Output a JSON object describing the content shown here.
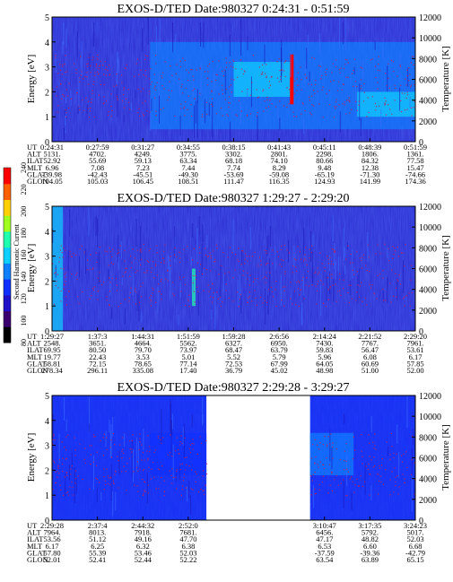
{
  "colorbar": {
    "label": "Second Harmonic Current",
    "ticks": [
      "80",
      "100",
      "120",
      "140",
      "160",
      "180",
      "200",
      "220",
      "240"
    ],
    "colors": [
      "#000000",
      "#3a0070",
      "#2010c8",
      "#1030ff",
      "#1080ff",
      "#10d0ff",
      "#20ffb0",
      "#a0ff20",
      "#ffd000",
      "#ff6000",
      "#ff0000"
    ]
  },
  "panels": [
    {
      "title": "EXOS-D/TED   Date:980327  0:24:31 - 0:51:59",
      "ylabel": "Energy [eV]",
      "y2label": "Temperature [K]",
      "yticks": [
        "0",
        "1",
        "2",
        "3",
        "4",
        "5"
      ],
      "y2ticks": [
        "0",
        "2000",
        "4000",
        "6000",
        "8000",
        "10000",
        "12000"
      ],
      "eph_labels": [
        "UT",
        "ALT",
        "ILAT",
        "MLT",
        "GLAT",
        "GLON"
      ],
      "eph_columns": [
        [
          "0:24:31",
          "5131.",
          "52.92",
          "6.96",
          "-39.98",
          "104.05"
        ],
        [
          "0:27:59",
          "4702.",
          "55.69",
          "7.08",
          "-42.43",
          "105.03"
        ],
        [
          "0:31:27",
          "4249.",
          "59.13",
          "7.23",
          "-45.51",
          "106.45"
        ],
        [
          "0:34:55",
          "3775.",
          "63.34",
          "7.44",
          "-49.30",
          "108.51"
        ],
        [
          "0:38:15",
          "3302.",
          "68.18",
          "7.74",
          "-53.69",
          "111.47"
        ],
        [
          "0:41:43",
          "2801.",
          "74.10",
          "8.29",
          "-59.08",
          "116.35"
        ],
        [
          "0:45:11",
          "2298.",
          "80.66",
          "9.48",
          "-65.19",
          "124.93"
        ],
        [
          "0:48:39",
          "1806.",
          "84.32",
          "12.38",
          "-71.30",
          "141.99"
        ],
        [
          "0:51:59",
          "1361.",
          "77.58",
          "15.47",
          "-74.66",
          "174.36"
        ]
      ]
    },
    {
      "title": "EXOS-D/TED   Date:980327  1:29:27 - 2:29:20",
      "ylabel": "Energy [eV]",
      "y2label": "Temperature [K]",
      "yticks": [
        "0",
        "1",
        "2",
        "3",
        "4",
        "5"
      ],
      "y2ticks": [
        "0",
        "2000",
        "4000",
        "6000",
        "8000",
        "10000",
        "12000"
      ],
      "eph_labels": [
        "UT",
        "ALT",
        "ILAT",
        "MLT",
        "GLAT",
        "GLON"
      ],
      "eph_columns": [
        [
          "1:29:27",
          "2548.",
          "69.95",
          "19.77",
          "58.81",
          "278.34"
        ],
        [
          "1:37:3",
          "3651.",
          "80.50",
          "22.43",
          "72.15",
          "296.11"
        ],
        [
          "1:44:31",
          "4664.",
          "79.70",
          "3.53",
          "78.65",
          "335.08"
        ],
        [
          "1:51:59",
          "5562.",
          "73.97",
          "5.01",
          "77.14",
          "17.40"
        ],
        [
          "1:59:28",
          "6327.",
          "68.47",
          "5.52",
          "72.53",
          "36.79"
        ],
        [
          "2:6:56",
          "6950.",
          "63.79",
          "5.79",
          "67.99",
          "45.02"
        ],
        [
          "2:14:24",
          "7430.",
          "59.83",
          "5.96",
          "64.05",
          "48.98"
        ],
        [
          "2:21:52",
          "7767.",
          "56.47",
          "6.08",
          "60.69",
          "51.00"
        ],
        [
          "2:29:20",
          "7961.",
          "53.61",
          "6.17",
          "57.85",
          "52.00"
        ]
      ]
    },
    {
      "title": "EXOS-D/TED   Date:980327  2:29:28 - 3:29:27",
      "ylabel": "Energy [eV]",
      "y2label": "Temperature [K]",
      "yticks": [
        "0",
        "1",
        "2",
        "3",
        "4",
        "5"
      ],
      "y2ticks": [
        "0",
        "2000",
        "4000",
        "6000",
        "8000",
        "10000",
        "12000"
      ],
      "eph_labels": [
        "UT",
        "ALT",
        "ILAT",
        "MLT",
        "GLAT",
        "GLON"
      ],
      "eph_columns": [
        [
          "2:29:28",
          "7964.",
          "53.56",
          "6.17",
          "57.80",
          "52.01"
        ],
        [
          "2:37:4",
          "8013.",
          "51.12",
          "6.25",
          "55.39",
          "52.41"
        ],
        [
          "2:44:32",
          "7918.",
          "49.16",
          "6.32",
          "53.46",
          "52.44"
        ],
        [
          "2:52:0",
          "7681.",
          "47.70",
          "6.38",
          "52.03",
          "52.22"
        ],
        [
          "",
          "",
          "",
          "",
          "",
          ""
        ],
        [
          "",
          "",
          "",
          "",
          "",
          ""
        ],
        [
          "3:10:47",
          "6456.",
          "47.17",
          "6.53",
          "-37.59",
          "63.54"
        ],
        [
          "3:17:35",
          "5792.",
          "48.82",
          "6.60",
          "-39.36",
          "63.89"
        ],
        [
          "3:24:23",
          "5017.",
          "52.03",
          "6.68",
          "-42.79",
          "65.15"
        ]
      ]
    }
  ],
  "chart_data": [
    {
      "type": "heatmap",
      "title": "EXOS-D/TED   Date:980327  0:24:31 - 0:51:59",
      "xlabel": "UT",
      "ylabel": "Energy [eV]",
      "y2label": "Temperature [K]",
      "ylim": [
        0,
        5
      ],
      "y2lim": [
        0,
        12000
      ],
      "x_ticks": [
        "0:24:31",
        "0:27:59",
        "0:31:27",
        "0:34:55",
        "0:38:15",
        "0:41:43",
        "0:45:11",
        "0:48:39",
        "0:51:59"
      ],
      "colorbar": {
        "label": "Second Harmonic Current",
        "range": [
          80,
          240
        ]
      },
      "features": [
        {
          "x_range": [
            0.0,
            1.0
          ],
          "e_range": [
            0,
            5
          ],
          "level": 120
        },
        {
          "x_range": [
            0.27,
            1.0
          ],
          "e_range": [
            0.5,
            4.0
          ],
          "level": 140
        },
        {
          "x_range": [
            0.5,
            0.66
          ],
          "e_range": [
            1.8,
            3.2
          ],
          "level": 160
        },
        {
          "x_range": [
            0.84,
            1.0
          ],
          "e_range": [
            1.0,
            2.0
          ],
          "level": 165
        },
        {
          "x_range": [
            0.655,
            0.665
          ],
          "e_range": [
            1.5,
            3.5
          ],
          "level": 240
        }
      ],
      "temperature_trace": {
        "x_range": [
          0.0,
          1.0
        ],
        "e_range": [
          1.0,
          3.5
        ]
      }
    },
    {
      "type": "heatmap",
      "title": "EXOS-D/TED   Date:980327  1:29:27 - 2:29:20",
      "xlabel": "UT",
      "ylabel": "Energy [eV]",
      "y2label": "Temperature [K]",
      "ylim": [
        0,
        5
      ],
      "y2lim": [
        0,
        12000
      ],
      "x_ticks": [
        "1:29:27",
        "1:37:3",
        "1:44:31",
        "1:51:59",
        "1:59:28",
        "2:6:56",
        "2:14:24",
        "2:21:52",
        "2:29:20"
      ],
      "colorbar": {
        "label": "Second Harmonic Current",
        "range": [
          80,
          240
        ]
      },
      "features": [
        {
          "x_range": [
            0.0,
            1.0
          ],
          "e_range": [
            0,
            5
          ],
          "level": 120
        },
        {
          "x_range": [
            0.0,
            0.03
          ],
          "e_range": [
            0,
            5
          ],
          "level": 160
        },
        {
          "x_range": [
            0.385,
            0.395
          ],
          "e_range": [
            1.0,
            2.5
          ],
          "level": 170
        }
      ],
      "temperature_trace": {
        "x_range": [
          0.0,
          1.0
        ],
        "e_range": [
          1.0,
          3.5
        ]
      }
    },
    {
      "type": "heatmap",
      "title": "EXOS-D/TED   Date:980327  2:29:28 - 3:29:27",
      "xlabel": "UT",
      "ylabel": "Energy [eV]",
      "y2label": "Temperature [K]",
      "ylim": [
        0,
        5
      ],
      "y2lim": [
        0,
        12000
      ],
      "x_ticks": [
        "2:29:28",
        "2:37:4",
        "2:44:32",
        "2:52:0",
        "",
        "",
        "3:10:47",
        "3:17:35",
        "3:24:23"
      ],
      "colorbar": {
        "label": "Second Harmonic Current",
        "range": [
          80,
          240
        ]
      },
      "data_gap": [
        "2:55:00",
        "3:10:47"
      ],
      "features": [
        {
          "x_range": [
            0.0,
            0.425
          ],
          "e_range": [
            0,
            5
          ],
          "level": 120
        },
        {
          "x_range": [
            0.71,
            1.0
          ],
          "e_range": [
            0,
            5
          ],
          "level": 120
        },
        {
          "x_range": [
            0.27,
            0.425
          ],
          "e_range": [
            1.8,
            3.5
          ],
          "level": 135
        },
        {
          "x_range": [
            0.71,
            0.83
          ],
          "e_range": [
            1.8,
            3.5
          ],
          "level": 140
        }
      ],
      "temperature_trace": {
        "x_range": [
          0.0,
          1.0
        ],
        "e_range": [
          1.0,
          3.5
        ]
      }
    }
  ]
}
